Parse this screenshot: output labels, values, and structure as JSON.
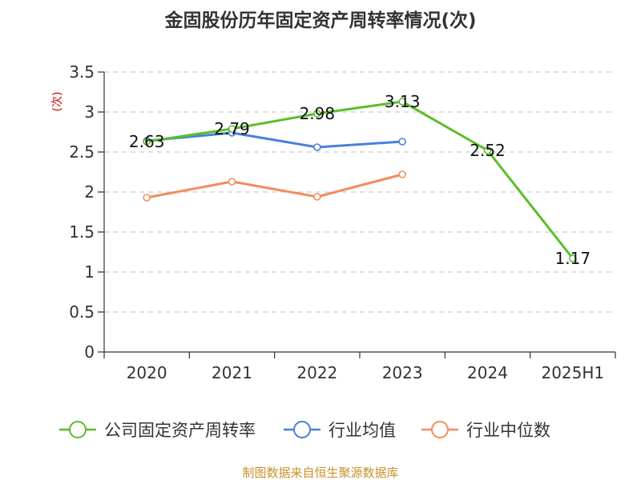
{
  "chart_data": {
    "type": "line",
    "title": "金固股份历年固定资产周转率情况(次)",
    "ylabel": "(次)",
    "xlabel": "",
    "categories": [
      "2020",
      "2021",
      "2022",
      "2023",
      "2024",
      "2025H1"
    ],
    "ylim": [
      0,
      3.5
    ],
    "yticks": [
      "0",
      "0.5",
      "1",
      "1.5",
      "2",
      "2.5",
      "3",
      "3.5"
    ],
    "grid": true,
    "legend_position": "bottom",
    "series": [
      {
        "name": "公司固定资产周转率",
        "color": "#5bbd2b",
        "values": [
          2.63,
          2.79,
          2.98,
          3.13,
          2.52,
          1.17
        ],
        "labels": [
          "2.63",
          "2.79",
          "2.98",
          "3.13",
          "2.52",
          "1.17"
        ]
      },
      {
        "name": "行业均值",
        "color": "#4a7fdb",
        "values": [
          2.64,
          2.74,
          2.56,
          2.63,
          null,
          null
        ]
      },
      {
        "name": "行业中位数",
        "color": "#f28c5c",
        "values": [
          1.93,
          2.13,
          1.94,
          2.22,
          null,
          null
        ]
      }
    ],
    "source": "制图数据来自恒生聚源数据库"
  }
}
